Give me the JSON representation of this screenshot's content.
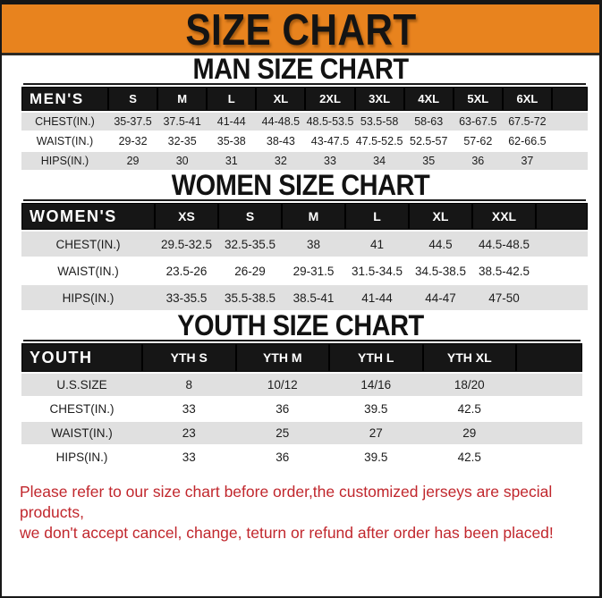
{
  "page": {
    "title": "SIZE CHART"
  },
  "colors": {
    "accent_orange": "#E8831E",
    "bar_black": "#161616",
    "row_gray": "#E0E0E0",
    "footer_red": "#C1272D",
    "page_bg": "#FFFFFF"
  },
  "sections": {
    "men": {
      "title": "MAN SIZE CHART",
      "table": {
        "header": [
          "MEN'S",
          "S",
          "M",
          "L",
          "XL",
          "2XL",
          "3XL",
          "4XL",
          "5XL",
          "6XL"
        ],
        "rows": [
          [
            "CHEST(IN.)",
            "35-37.5",
            "37.5-41",
            "41-44",
            "44-48.5",
            "48.5-53.5",
            "53.5-58",
            "58-63",
            "63-67.5",
            "67.5-72"
          ],
          [
            "WAIST(IN.)",
            "29-32",
            "32-35",
            "35-38",
            "38-43",
            "43-47.5",
            "47.5-52.5",
            "52.5-57",
            "57-62",
            "62-66.5"
          ],
          [
            "HIPS(IN.)",
            "29",
            "30",
            "31",
            "32",
            "33",
            "34",
            "35",
            "36",
            "37"
          ]
        ]
      }
    },
    "women": {
      "title": "WOMEN SIZE CHART",
      "table": {
        "header": [
          "WOMEN'S",
          "XS",
          "S",
          "M",
          "L",
          "XL",
          "XXL"
        ],
        "rows": [
          [
            "CHEST(IN.)",
            "29.5-32.5",
            "32.5-35.5",
            "38",
            "41",
            "44.5",
            "44.5-48.5"
          ],
          [
            "WAIST(IN.)",
            "23.5-26",
            "26-29",
            "29-31.5",
            "31.5-34.5",
            "34.5-38.5",
            "38.5-42.5"
          ],
          [
            "HIPS(IN.)",
            "33-35.5",
            "35.5-38.5",
            "38.5-41",
            "41-44",
            "44-47",
            "47-50"
          ]
        ]
      }
    },
    "youth": {
      "title": "YOUTH SIZE CHART",
      "table": {
        "header": [
          "YOUTH",
          "YTH S",
          "YTH M",
          "YTH L",
          "YTH XL"
        ],
        "rows": [
          [
            "U.S.SIZE",
            "8",
            "10/12",
            "14/16",
            "18/20"
          ],
          [
            "CHEST(IN.)",
            "33",
            "36",
            "39.5",
            "42.5"
          ],
          [
            "WAIST(IN.)",
            "23",
            "25",
            "27",
            "29"
          ],
          [
            "HIPS(IN.)",
            "33",
            "36",
            "39.5",
            "42.5"
          ]
        ]
      }
    }
  },
  "footer": {
    "line1": "Please refer to our size chart before order,the customized jerseys are special products,",
    "line2": "we don't accept cancel, change, teturn or refund after order has been placed!"
  }
}
